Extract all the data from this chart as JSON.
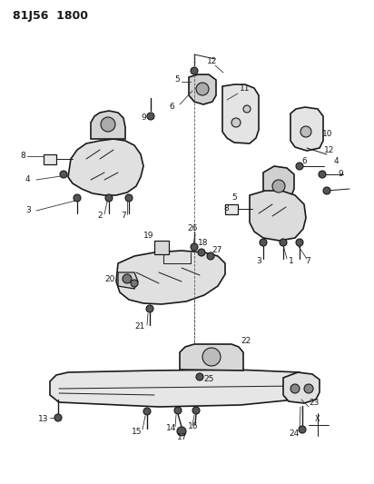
{
  "title": "81J56 1800",
  "bg_color": "#ffffff",
  "line_color": "#000000",
  "fig_width": 4.12,
  "fig_height": 5.33,
  "dpi": 100
}
